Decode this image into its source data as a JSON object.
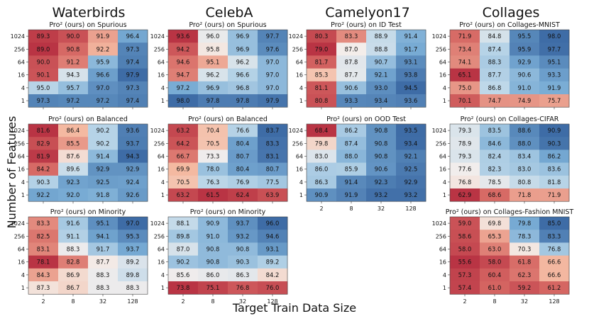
{
  "chart_data": {
    "type": "heatmap",
    "xlabel": "Target Train Data Size",
    "ylabel": "Number of Features",
    "x_ticks": [
      "2",
      "8",
      "32",
      "128"
    ],
    "y_ticks_default": [
      "1024",
      "256",
      "64",
      "16",
      "4",
      "1"
    ],
    "colormap": "RdBu (per-panel normalized; low = red, high = blue)",
    "columns": [
      {
        "title": "Waterbirds",
        "panels": [
          {
            "title": "Pro² (ours) on Spurious",
            "rows": [
              "1024",
              "256",
              "64",
              "16",
              "4",
              "1"
            ],
            "values": [
              [
                89.3,
                90.0,
                91.9,
                96.4
              ],
              [
                89.0,
                90.8,
                92.2,
                97.3
              ],
              [
                90.0,
                91.2,
                95.9,
                97.4
              ],
              [
                90.1,
                94.3,
                96.6,
                97.9
              ],
              [
                95.0,
                95.7,
                97.0,
                97.3
              ],
              [
                97.3,
                97.2,
                97.2,
                97.4
              ]
            ]
          },
          {
            "title": "Pro² (ours) on Balanced",
            "rows": [
              "1024",
              "256",
              "64",
              "16",
              "4",
              "1"
            ],
            "values": [
              [
                81.6,
                86.4,
                90.2,
                93.6
              ],
              [
                82.9,
                85.5,
                90.2,
                93.7
              ],
              [
                81.9,
                87.6,
                91.4,
                94.3
              ],
              [
                84.2,
                89.6,
                92.9,
                92.9
              ],
              [
                90.3,
                92.3,
                92.5,
                92.4
              ],
              [
                92.2,
                92.0,
                91.8,
                92.6
              ]
            ]
          },
          {
            "title": "Pro² (ours) on Minority",
            "rows": [
              "1024",
              "256",
              "64",
              "16",
              "4",
              "1"
            ],
            "values": [
              [
                83.3,
                91.6,
                95.1,
                97.0
              ],
              [
                82.5,
                91.1,
                94.1,
                95.3
              ],
              [
                83.1,
                88.3,
                91.7,
                93.7
              ],
              [
                78.1,
                82.8,
                87.7,
                89.2
              ],
              [
                84.3,
                86.9,
                88.3,
                89.8
              ],
              [
                87.3,
                86.7,
                88.3,
                88.3
              ]
            ]
          }
        ]
      },
      {
        "title": "CelebA",
        "panels": [
          {
            "title": "Pro² (ours) on Spurious",
            "rows": [
              "1024",
              "256",
              "64",
              "16",
              "4",
              "1"
            ],
            "values": [
              [
                93.6,
                96.0,
                96.9,
                97.7
              ],
              [
                94.2,
                95.8,
                96.9,
                97.6
              ],
              [
                94.6,
                95.1,
                96.2,
                97.0
              ],
              [
                94.7,
                96.2,
                96.6,
                97.0
              ],
              [
                97.2,
                96.9,
                96.8,
                97.0
              ],
              [
                98.0,
                97.8,
                97.8,
                97.9
              ]
            ]
          },
          {
            "title": "Pro² (ours) on Balanced",
            "rows": [
              "1024",
              "256",
              "64",
              "16",
              "4",
              "1"
            ],
            "values": [
              [
                63.2,
                70.4,
                76.6,
                83.7
              ],
              [
                64.2,
                70.5,
                80.4,
                83.3
              ],
              [
                66.7,
                73.3,
                80.7,
                83.1
              ],
              [
                69.9,
                78.0,
                80.4,
                80.7
              ],
              [
                70.5,
                76.3,
                76.9,
                77.5
              ],
              [
                63.2,
                61.5,
                62.4,
                63.9
              ]
            ]
          },
          {
            "title": "Pro² (ours) on Minority",
            "rows": [
              "1024",
              "256",
              "64",
              "16",
              "4",
              "1"
            ],
            "values": [
              [
                88.1,
                90.9,
                93.7,
                96.0
              ],
              [
                89.8,
                91.0,
                93.2,
                94.6
              ],
              [
                87.0,
                90.8,
                90.8,
                93.1
              ],
              [
                90.2,
                90.8,
                90.3,
                89.2
              ],
              [
                85.6,
                86.0,
                86.3,
                84.2
              ],
              [
                73.8,
                75.1,
                76.8,
                76.0
              ]
            ]
          }
        ]
      },
      {
        "title": "Camelyon17",
        "panels": [
          {
            "title": "Pro² (ours) on ID Test",
            "rows": [
              "1024",
              "256",
              "64",
              "16",
              "4",
              "1"
            ],
            "values": [
              [
                80.3,
                83.3,
                88.9,
                91.4
              ],
              [
                79.0,
                87.0,
                88.8,
                91.7
              ],
              [
                81.7,
                87.8,
                90.7,
                93.1
              ],
              [
                85.3,
                87.7,
                92.1,
                93.8
              ],
              [
                81.1,
                90.6,
                93.0,
                94.5
              ],
              [
                80.8,
                93.3,
                93.4,
                93.6
              ]
            ]
          },
          {
            "title": "Pro² (ours) on OOD Test",
            "rows": [
              "1024",
              "256",
              "64",
              "16",
              "4",
              "1"
            ],
            "values": [
              [
                68.4,
                86.2,
                90.8,
                93.5
              ],
              [
                79.8,
                87.4,
                90.8,
                93.4
              ],
              [
                83.0,
                88.0,
                90.8,
                92.1
              ],
              [
                86.0,
                85.9,
                90.6,
                92.5
              ],
              [
                86.3,
                91.4,
                92.3,
                92.9
              ],
              [
                90.9,
                91.9,
                93.2,
                93.2
              ]
            ]
          }
        ]
      },
      {
        "title": "Collages",
        "panels": [
          {
            "title": "Pro² (ours) on Collages-MNIST",
            "rows": [
              "1024",
              "256",
              "64",
              "16",
              "4",
              "1"
            ],
            "values": [
              [
                71.9,
                84.8,
                95.5,
                98.0
              ],
              [
                73.4,
                87.4,
                95.9,
                97.7
              ],
              [
                74.1,
                88.3,
                92.9,
                95.1
              ],
              [
                65.1,
                87.7,
                90.6,
                93.3
              ],
              [
                75.0,
                86.8,
                91.0,
                91.9
              ],
              [
                70.1,
                74.7,
                74.9,
                75.7
              ]
            ]
          },
          {
            "title": "Pro² (ours) on Collages-CIFAR",
            "rows": [
              "1024",
              "256",
              "64",
              "16",
              "4",
              "1"
            ],
            "values": [
              [
                79.3,
                83.5,
                88.6,
                90.9
              ],
              [
                78.9,
                84.6,
                88.0,
                90.3
              ],
              [
                79.3,
                82.4,
                83.4,
                86.2
              ],
              [
                77.6,
                82.3,
                83.0,
                83.6
              ],
              [
                76.8,
                78.5,
                80.8,
                81.8
              ],
              [
                62.9,
                68.6,
                71.8,
                71.9
              ]
            ]
          },
          {
            "title": "Pro² (ours) on Collages-Fashion MNIST",
            "rows": [
              "1024",
              "256",
              "64",
              "16",
              "4",
              "1"
            ],
            "values": [
              [
                59.0,
                69.8,
                79.8,
                85.0
              ],
              [
                58.6,
                65.3,
                78.3,
                83.3
              ],
              [
                58.0,
                63.0,
                70.3,
                76.8
              ],
              [
                55.6,
                58.0,
                61.8,
                66.6
              ],
              [
                57.3,
                60.4,
                62.3,
                66.6
              ],
              [
                57.4,
                61.0,
                59.2,
                61.2
              ]
            ]
          }
        ]
      }
    ]
  }
}
